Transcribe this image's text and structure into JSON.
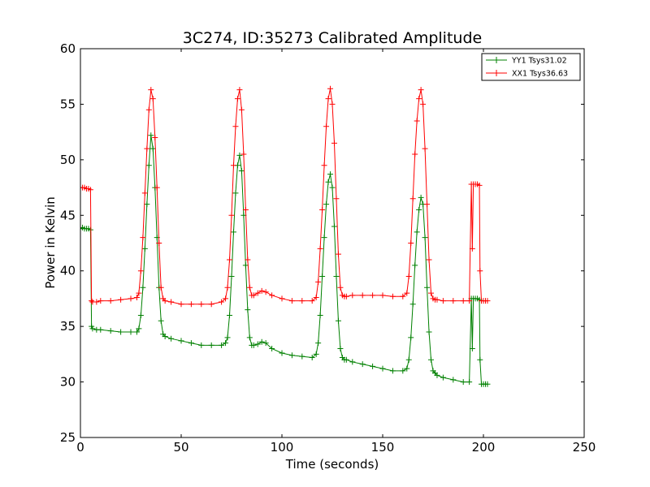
{
  "chart_data": {
    "type": "line",
    "title": "3C274, ID:35273 Calibrated Amplitude",
    "xlabel": "Time (seconds)",
    "ylabel": "Power in Kelvin",
    "xlim": [
      0,
      250
    ],
    "ylim": [
      25,
      60
    ],
    "xticks": [
      0,
      50,
      100,
      150,
      200,
      250
    ],
    "yticks": [
      25,
      30,
      35,
      40,
      45,
      50,
      55,
      60
    ],
    "grid": false,
    "legend": "top-right",
    "marker": "plus",
    "series": [
      {
        "name": "YY1 Tsys31.02",
        "color": "#008000",
        "x": [
          0,
          1,
          2,
          3,
          4,
          5,
          5.5,
          6,
          8,
          10,
          15,
          20,
          25,
          28,
          29,
          30,
          31,
          32,
          33,
          34,
          35,
          36,
          37,
          38,
          39,
          40,
          41,
          42,
          45,
          50,
          55,
          60,
          65,
          70,
          72,
          73,
          74,
          75,
          76,
          77,
          78,
          79,
          80,
          81,
          82,
          83,
          84,
          85,
          86,
          88,
          90,
          92,
          95,
          100,
          105,
          110,
          115,
          117,
          118,
          119,
          120,
          121,
          122,
          123,
          124,
          125,
          126,
          127,
          128,
          129,
          130,
          131,
          132,
          135,
          140,
          145,
          150,
          155,
          160,
          162,
          163,
          164,
          165,
          166,
          167,
          168,
          169,
          170,
          171,
          172,
          173,
          174,
          175,
          176,
          177,
          180,
          185,
          190,
          193,
          194,
          194.5,
          195,
          196,
          197,
          198,
          198.3,
          199,
          200,
          201,
          202
        ],
        "y": [
          43.8,
          43.9,
          43.8,
          43.8,
          43.8,
          43.7,
          35.0,
          34.8,
          34.7,
          34.7,
          34.6,
          34.5,
          34.5,
          34.5,
          34.8,
          36.0,
          38.5,
          42.0,
          46.0,
          49.5,
          52.2,
          51.0,
          47.5,
          43.0,
          38.5,
          35.5,
          34.3,
          34.1,
          33.9,
          33.7,
          33.5,
          33.3,
          33.3,
          33.3,
          33.5,
          34.0,
          36.0,
          39.5,
          43.5,
          47.0,
          49.5,
          50.4,
          49.0,
          45.0,
          40.5,
          36.5,
          34.0,
          33.3,
          33.3,
          33.4,
          33.6,
          33.5,
          33.0,
          32.6,
          32.4,
          32.3,
          32.2,
          32.5,
          33.5,
          36.0,
          39.5,
          43.0,
          46.0,
          48.0,
          48.7,
          47.5,
          44.0,
          39.5,
          35.5,
          33.0,
          32.2,
          32.0,
          32.0,
          31.8,
          31.6,
          31.4,
          31.2,
          31.0,
          31.0,
          31.2,
          32.0,
          34.0,
          37.0,
          40.5,
          43.5,
          45.5,
          46.6,
          46.0,
          43.0,
          38.5,
          34.5,
          32.0,
          31.0,
          30.8,
          30.6,
          30.4,
          30.2,
          30.0,
          30.0,
          37.5,
          33.0,
          37.5,
          37.5,
          37.5,
          37.4,
          32.0,
          29.8,
          29.8,
          29.8,
          29.8
        ]
      },
      {
        "name": "XX1 Tsys36.63",
        "color": "#ff0000",
        "x": [
          0,
          1,
          2,
          3,
          4,
          5,
          5.5,
          6,
          8,
          10,
          15,
          20,
          25,
          28,
          29,
          30,
          31,
          32,
          33,
          34,
          35,
          36,
          37,
          38,
          39,
          40,
          41,
          42,
          45,
          50,
          55,
          60,
          65,
          70,
          72,
          73,
          74,
          75,
          76,
          77,
          78,
          79,
          80,
          81,
          82,
          83,
          84,
          85,
          86,
          88,
          90,
          92,
          95,
          100,
          105,
          110,
          115,
          117,
          118,
          119,
          120,
          121,
          122,
          123,
          124,
          125,
          126,
          127,
          128,
          129,
          130,
          131,
          132,
          135,
          140,
          145,
          150,
          155,
          160,
          162,
          163,
          164,
          165,
          166,
          167,
          168,
          169,
          170,
          171,
          172,
          173,
          174,
          175,
          176,
          177,
          180,
          185,
          190,
          193,
          194,
          194.5,
          195,
          196,
          197,
          198,
          198.3,
          199,
          200,
          201,
          202
        ],
        "y": [
          47.5,
          47.5,
          47.5,
          47.4,
          47.4,
          47.3,
          37.3,
          37.2,
          37.2,
          37.3,
          37.3,
          37.4,
          37.5,
          37.6,
          38.0,
          40.0,
          43.0,
          47.0,
          51.0,
          54.5,
          56.3,
          55.5,
          52.0,
          47.5,
          42.5,
          38.5,
          37.5,
          37.3,
          37.2,
          37.0,
          37.0,
          37.0,
          37.0,
          37.2,
          37.5,
          38.5,
          41.0,
          45.0,
          49.5,
          53.0,
          55.5,
          56.3,
          54.5,
          50.5,
          45.5,
          41.0,
          38.5,
          37.8,
          37.8,
          38.0,
          38.2,
          38.1,
          37.8,
          37.5,
          37.3,
          37.3,
          37.3,
          37.6,
          39.0,
          42.0,
          45.5,
          49.5,
          53.0,
          55.5,
          56.4,
          55.0,
          51.5,
          46.5,
          41.5,
          38.5,
          37.8,
          37.7,
          37.7,
          37.8,
          37.8,
          37.8,
          37.8,
          37.7,
          37.7,
          38.0,
          39.5,
          42.5,
          46.5,
          50.5,
          53.5,
          55.5,
          56.3,
          55.0,
          51.0,
          46.0,
          41.0,
          38.0,
          37.5,
          37.4,
          37.4,
          37.3,
          37.3,
          37.3,
          37.3,
          47.8,
          42.0,
          47.8,
          47.8,
          47.8,
          47.7,
          40.0,
          37.3,
          37.3,
          37.3,
          37.3
        ]
      }
    ]
  }
}
